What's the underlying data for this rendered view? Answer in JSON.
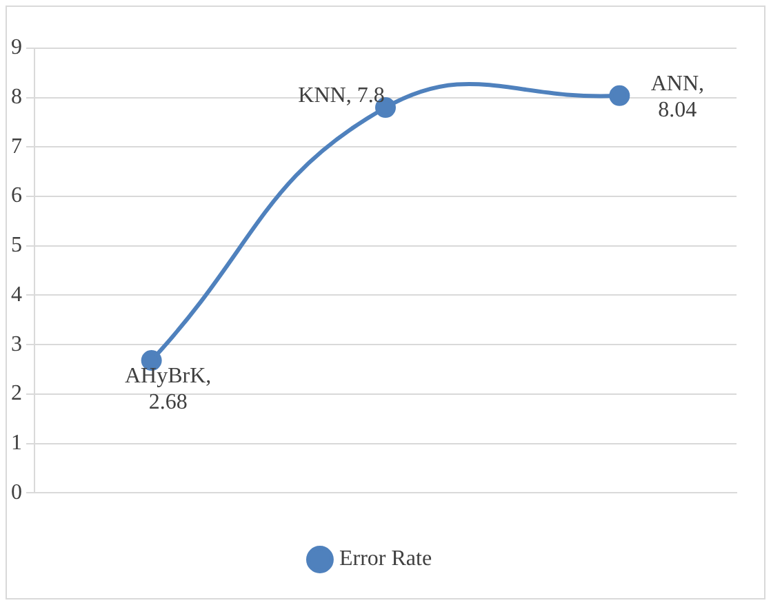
{
  "chart_data": {
    "type": "line",
    "categories": [
      null,
      null,
      null
    ],
    "series": [
      {
        "name": "Error Rate",
        "color": "#4f81bd",
        "values": [
          2.68,
          7.8,
          8.04
        ]
      }
    ],
    "value_labels": [
      "AHyBrK, 2.68",
      "KNN, 7.8",
      "ANN, 8.04"
    ],
    "ylim": [
      0,
      9
    ],
    "yticks": [
      0,
      1,
      2,
      3,
      4,
      5,
      6,
      7,
      8,
      9
    ],
    "grid": "y",
    "legend": "bottom",
    "marker": "circle",
    "line_style": "solid"
  }
}
